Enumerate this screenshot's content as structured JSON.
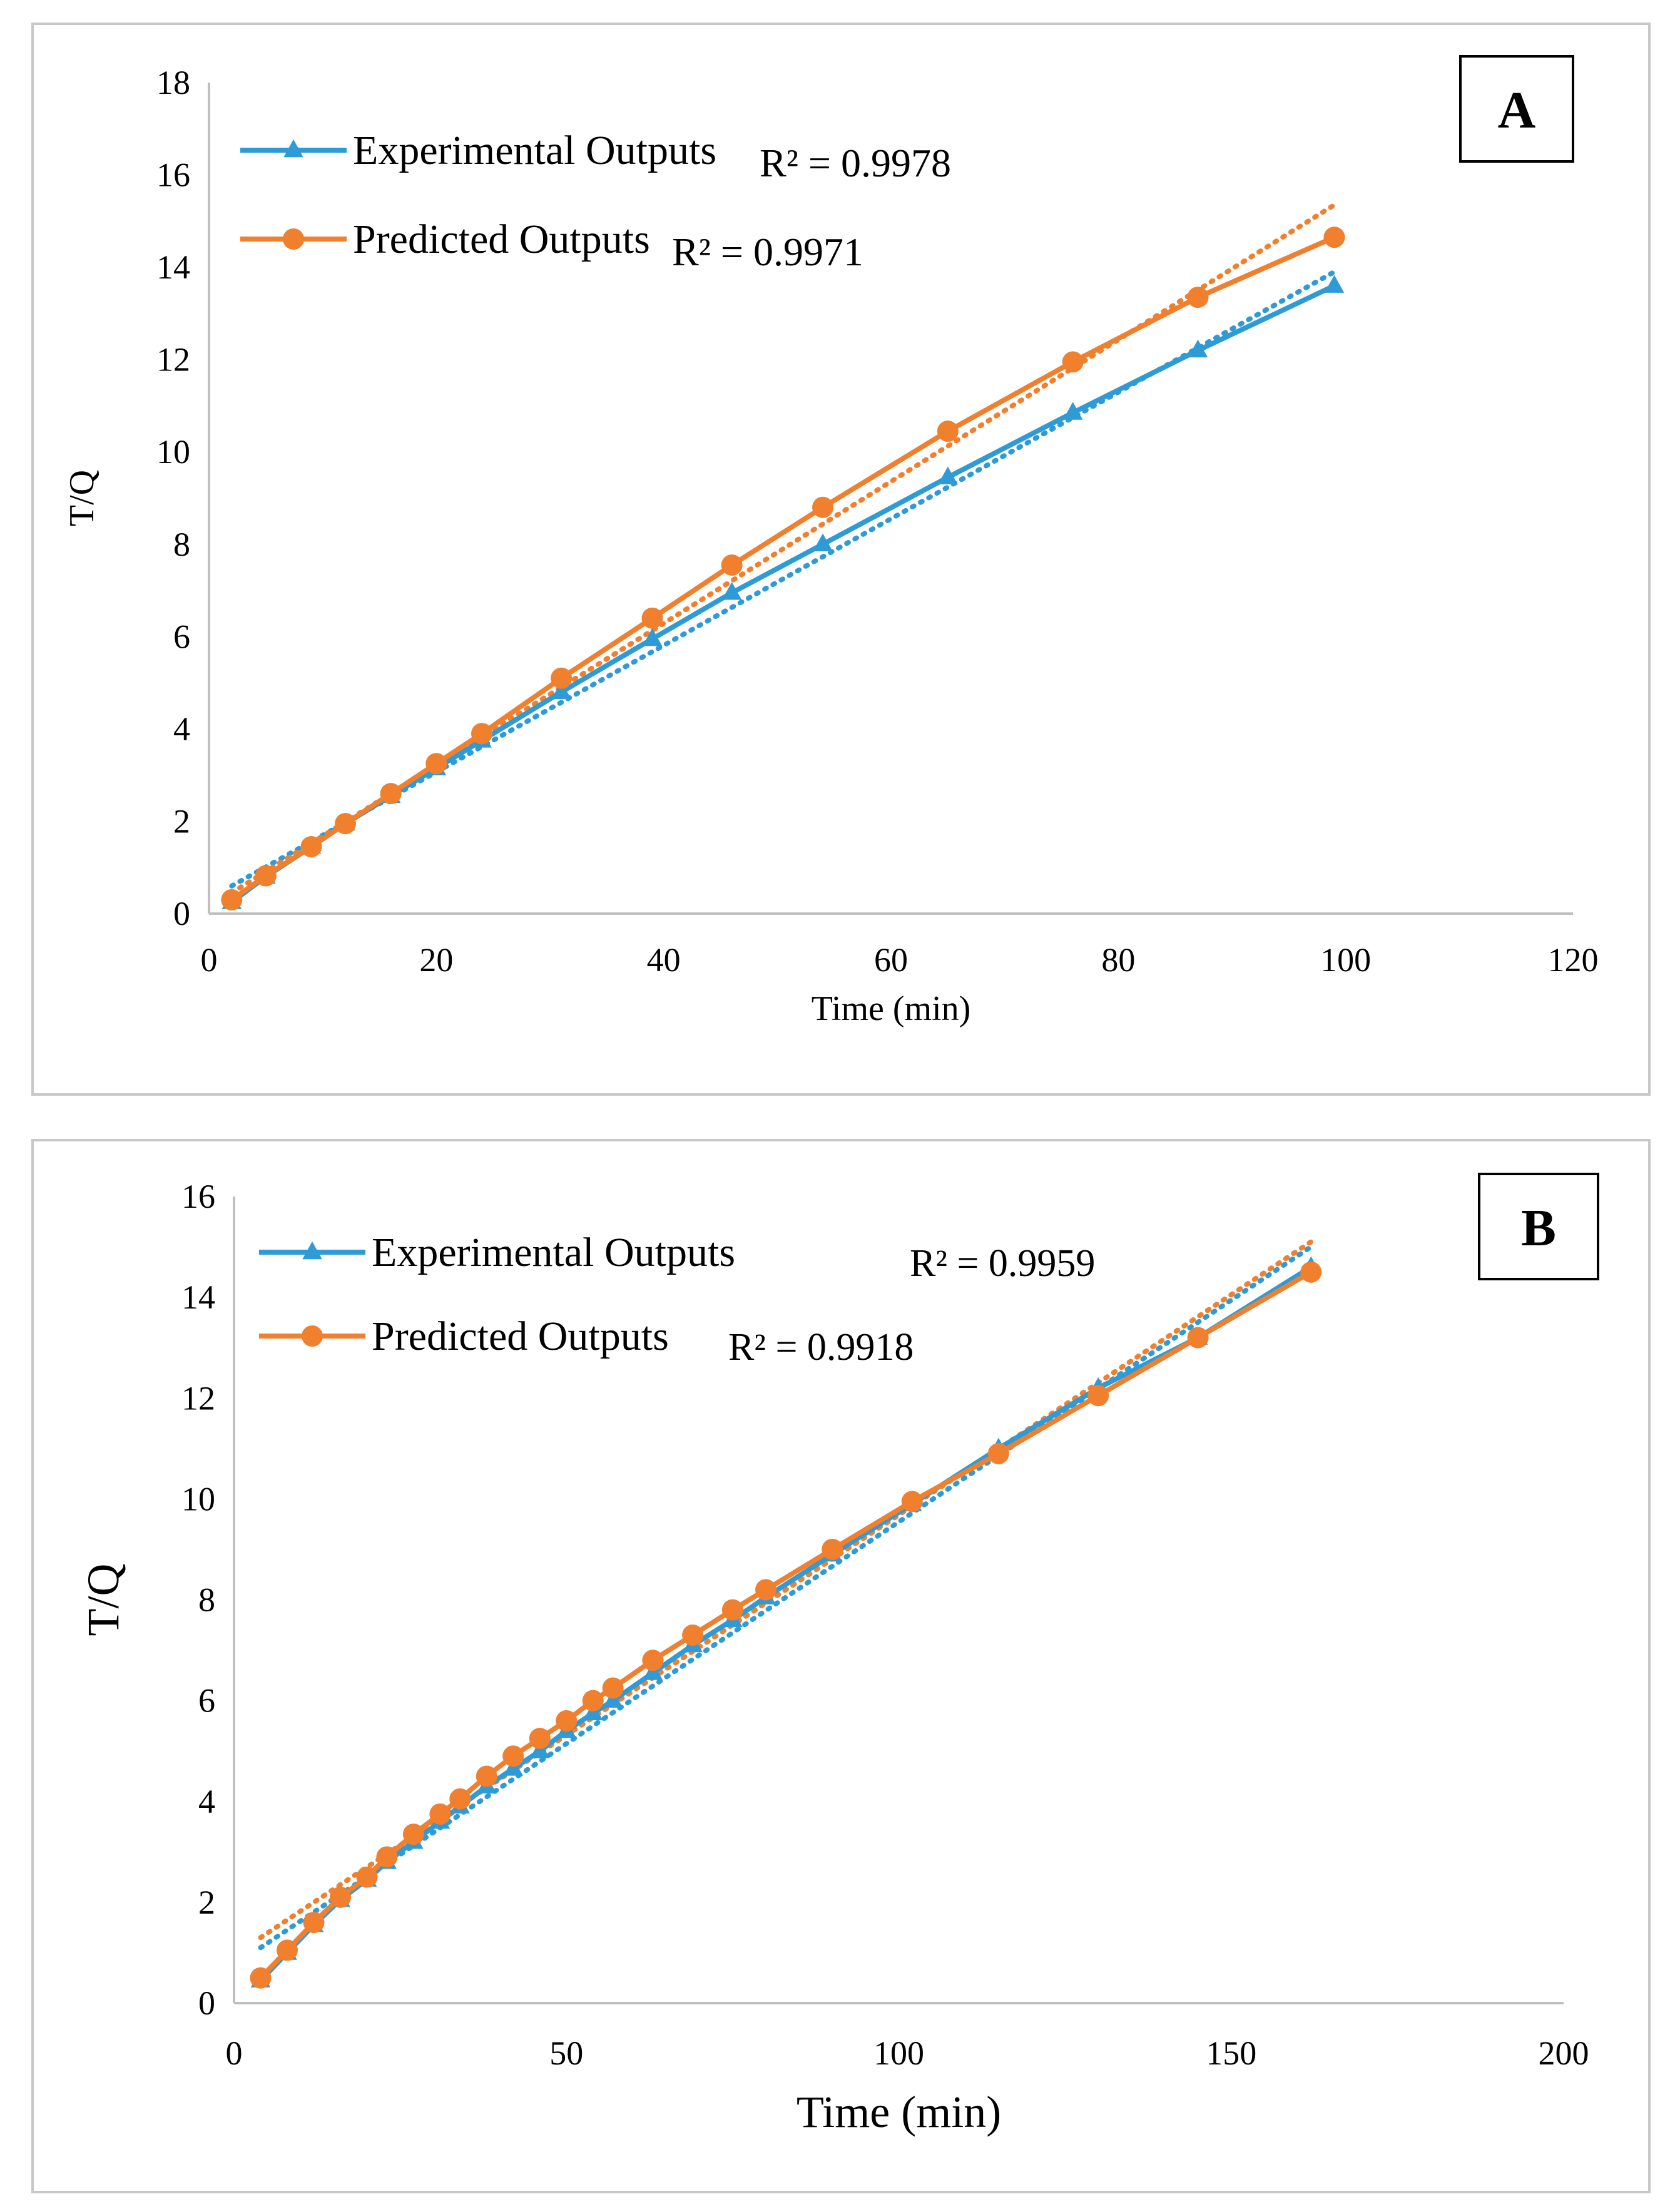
{
  "chart_data": [
    {
      "id": "A",
      "type": "line",
      "panel_label": "A",
      "xlabel": "Time (min)",
      "ylabel": "T/Q",
      "xlim": [
        0,
        120
      ],
      "ylim": [
        0,
        18
      ],
      "xticks": [
        0,
        20,
        40,
        60,
        80,
        100,
        120
      ],
      "yticks": [
        0,
        2,
        4,
        6,
        8,
        10,
        12,
        14,
        16,
        18
      ],
      "series": [
        {
          "name": "Experimental Outputs",
          "marker": "triangle",
          "color": "#2E9BD6",
          "r2": "R² = 0.9978",
          "x": [
            2,
            5,
            9,
            12,
            16,
            20,
            24,
            31,
            39,
            46,
            54,
            65,
            76,
            87,
            99
          ],
          "y": [
            0.25,
            0.8,
            1.45,
            1.95,
            2.55,
            3.15,
            3.75,
            4.8,
            5.95,
            6.95,
            8.0,
            9.45,
            10.85,
            12.2,
            13.6
          ],
          "trend": {
            "x": [
              2,
              99
            ],
            "y": [
              0.6,
              13.9
            ]
          }
        },
        {
          "name": "Predicted Outputs",
          "marker": "circle",
          "color": "#F07F2E",
          "r2": "R² = 0.9971",
          "x": [
            2,
            5,
            9,
            12,
            16,
            20,
            24,
            31,
            39,
            46,
            54,
            65,
            76,
            87,
            99
          ],
          "y": [
            0.3,
            0.82,
            1.45,
            1.95,
            2.6,
            3.25,
            3.9,
            5.1,
            6.4,
            7.55,
            8.8,
            10.45,
            11.95,
            13.35,
            14.65
          ],
          "trend": {
            "x": [
              2,
              99
            ],
            "y": [
              0.45,
              15.35
            ]
          }
        }
      ]
    },
    {
      "id": "B",
      "type": "line",
      "panel_label": "B",
      "xlabel": "Time (min)",
      "ylabel": "T/Q",
      "xlim": [
        0,
        200
      ],
      "ylim": [
        0,
        16
      ],
      "xticks": [
        0,
        50,
        100,
        150,
        200
      ],
      "yticks": [
        0,
        2,
        4,
        6,
        8,
        10,
        12,
        14,
        16
      ],
      "series": [
        {
          "name": "Experimental Outputs",
          "marker": "triangle",
          "color": "#2E9BD6",
          "r2": "R² = 0.9959",
          "x": [
            4,
            8,
            12,
            16,
            20,
            23,
            27,
            31,
            34,
            38,
            42,
            46,
            50,
            54,
            57,
            63,
            69,
            75,
            80,
            90,
            102,
            115,
            130,
            145,
            162
          ],
          "y": [
            0.45,
            1.0,
            1.55,
            2.05,
            2.45,
            2.8,
            3.2,
            3.6,
            3.9,
            4.3,
            4.65,
            5.0,
            5.4,
            5.75,
            6.0,
            6.55,
            7.1,
            7.6,
            8.05,
            8.9,
            9.9,
            11.0,
            12.2,
            13.2,
            14.6
          ],
          "trend": {
            "x": [
              4,
              162
            ],
            "y": [
              1.1,
              15.0
            ]
          }
        },
        {
          "name": "Predicted Outputs",
          "marker": "circle",
          "color": "#F07F2E",
          "r2": "R² = 0.9918",
          "x": [
            4,
            8,
            12,
            16,
            20,
            23,
            27,
            31,
            34,
            38,
            42,
            46,
            50,
            54,
            57,
            63,
            69,
            75,
            80,
            90,
            102,
            115,
            130,
            145,
            162
          ],
          "y": [
            0.5,
            1.05,
            1.6,
            2.1,
            2.5,
            2.9,
            3.35,
            3.75,
            4.05,
            4.5,
            4.9,
            5.25,
            5.6,
            6.0,
            6.25,
            6.8,
            7.3,
            7.8,
            8.2,
            9.0,
            9.95,
            10.9,
            12.05,
            13.2,
            14.5
          ],
          "trend": {
            "x": [
              4,
              162
            ],
            "y": [
              1.3,
              15.1
            ]
          }
        }
      ]
    }
  ]
}
